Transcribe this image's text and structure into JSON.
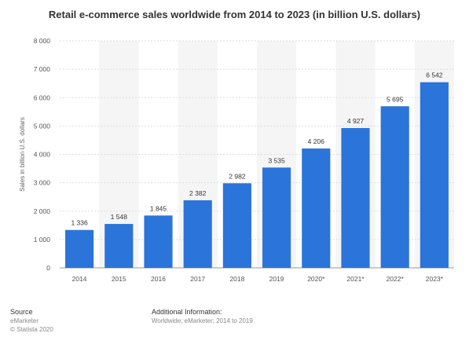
{
  "chart_data": {
    "type": "bar",
    "title": "Retail e-commerce sales worldwide from 2014 to 2023 (in billion U.S. dollars)",
    "xlabel": "",
    "ylabel": "Sales in billion U.S. dollars",
    "categories": [
      "2014",
      "2015",
      "2016",
      "2017",
      "2018",
      "2019",
      "2020*",
      "2021*",
      "2022*",
      "2023*"
    ],
    "values": [
      1336,
      1548,
      1845,
      2382,
      2982,
      3535,
      4206,
      4927,
      5695,
      6542
    ],
    "value_labels": [
      "1 336",
      "1 548",
      "1 845",
      "2 382",
      "2 982",
      "3 535",
      "4 206",
      "4 927",
      "5 695",
      "6 542"
    ],
    "ylim": [
      0,
      8000
    ],
    "yticks": [
      0,
      1000,
      2000,
      3000,
      4000,
      5000,
      6000,
      7000,
      8000
    ],
    "ytick_labels": [
      "0",
      "1 000",
      "2 000",
      "3 000",
      "4 000",
      "5 000",
      "6 000",
      "7 000",
      "8 000"
    ],
    "grid": true,
    "bar_color": "#2b74d9"
  },
  "footer": {
    "source_heading": "Source",
    "source_line1": "eMarketer",
    "source_line2": "© Statista 2020",
    "info_heading": "Additional Information:",
    "info_line": "Worldwide; eMarketer; 2014 to 2019"
  }
}
